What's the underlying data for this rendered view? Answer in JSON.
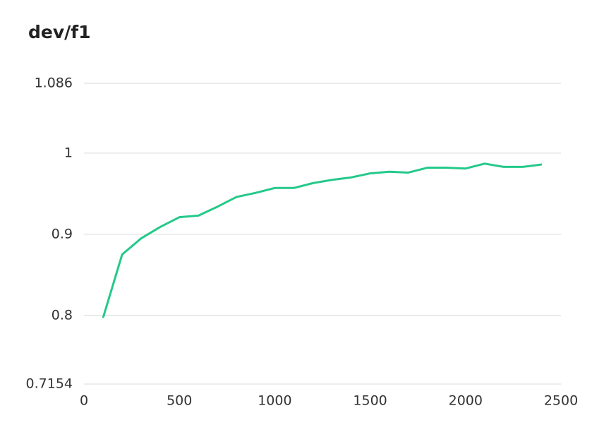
{
  "chart_data": {
    "type": "line",
    "title": "dev/f1",
    "x": [
      100,
      200,
      300,
      400,
      500,
      600,
      700,
      800,
      900,
      1000,
      1100,
      1200,
      1300,
      1400,
      1500,
      1600,
      1700,
      1800,
      1900,
      2000,
      2100,
      2200,
      2300,
      2400
    ],
    "values": [
      0.797,
      0.875,
      0.895,
      0.909,
      0.921,
      0.923,
      0.934,
      0.946,
      0.951,
      0.957,
      0.957,
      0.963,
      0.967,
      0.97,
      0.975,
      0.977,
      0.976,
      0.982,
      0.982,
      0.981,
      0.987,
      0.983,
      0.983,
      0.986
    ],
    "color": "#24c98a",
    "xlim": [
      0,
      2500
    ],
    "xticks": [
      0,
      500,
      1000,
      1500,
      2000,
      2500
    ],
    "ylim": [
      0.7154,
      1.086
    ],
    "yticks": [
      0.7154,
      0.8,
      0.9,
      1,
      1.086
    ],
    "grid": true
  }
}
